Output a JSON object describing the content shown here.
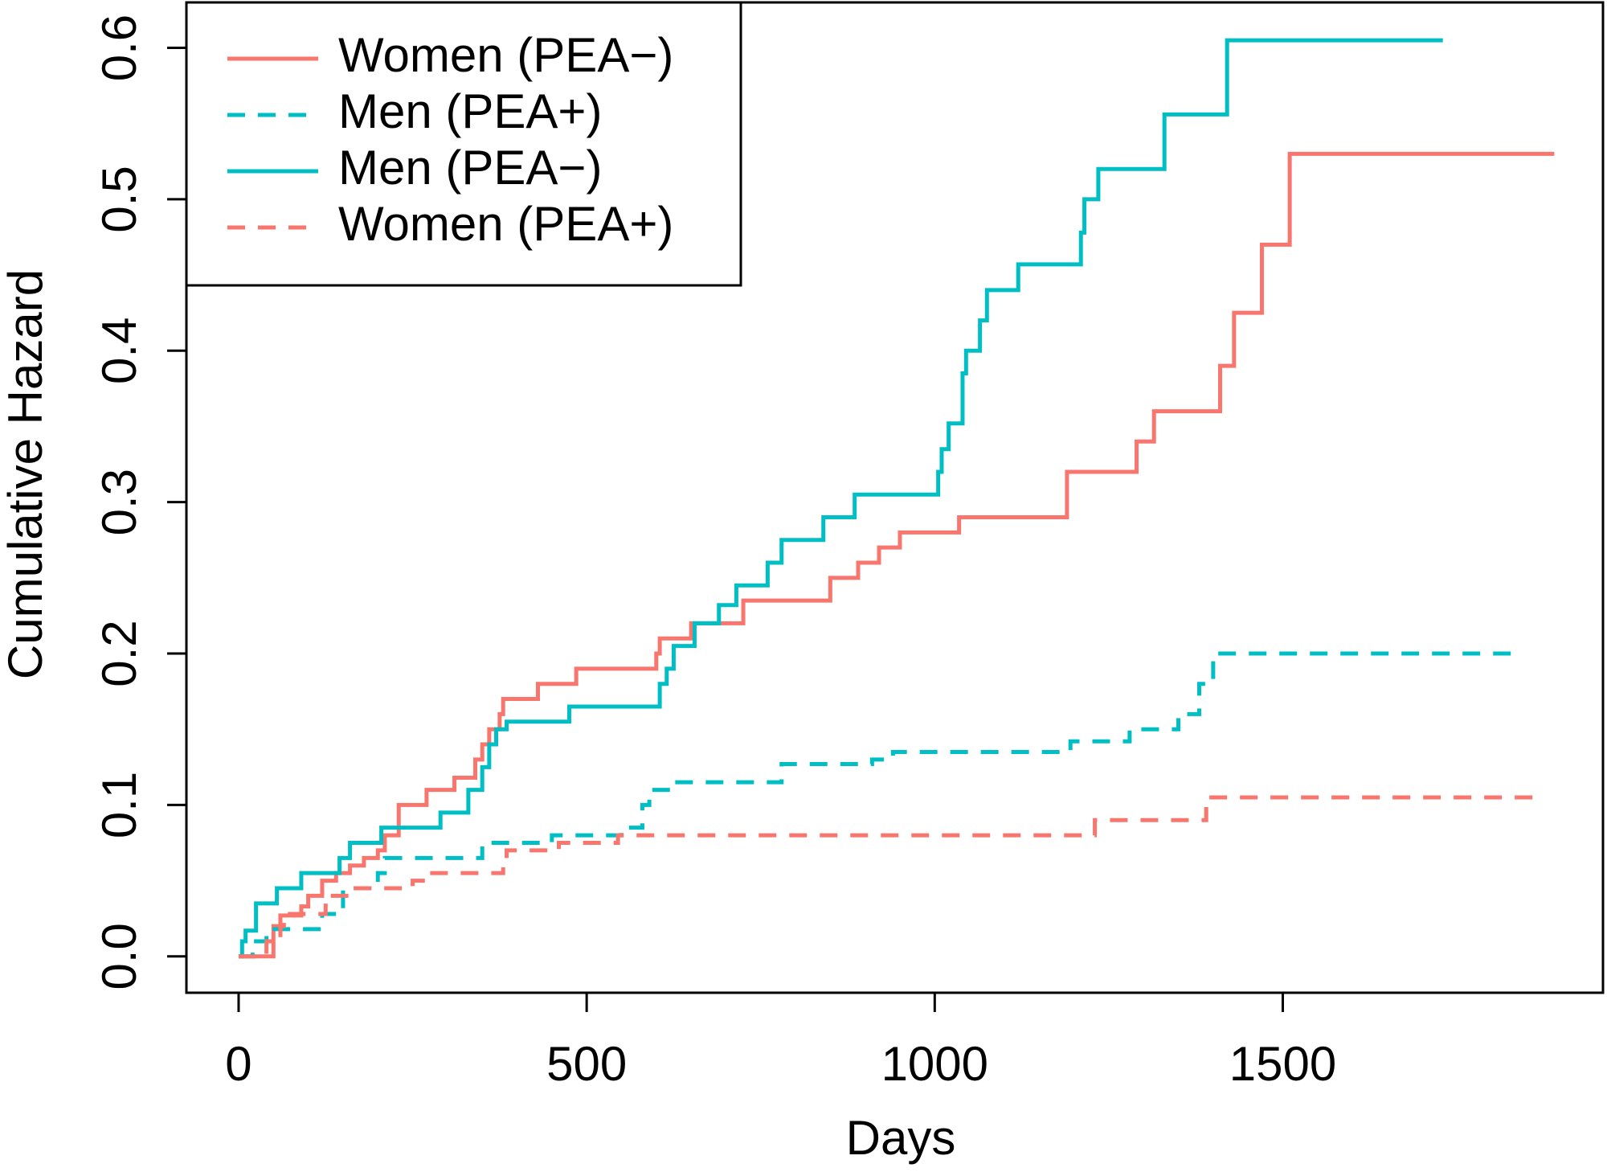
{
  "chart_data": {
    "type": "step",
    "xlabel": "Days",
    "ylabel": "Cumulative Hazard",
    "xlim": [
      -75,
      1960
    ],
    "ylim": [
      -0.024,
      0.63
    ],
    "xticks": [
      0,
      500,
      1000,
      1500
    ],
    "yticks": [
      {
        "value": 0,
        "label": "0.0"
      },
      0.1,
      0.2,
      0.3,
      0.4,
      0.5,
      0.6
    ],
    "legend": "top-left",
    "series": [
      {
        "name": "Women (PEA−)",
        "color": "#F8766D",
        "dash": false,
        "x": [
          0,
          50,
          60,
          90,
          100,
          120,
          140,
          160,
          180,
          200,
          210,
          230,
          270,
          310,
          340,
          350,
          360,
          375,
          380,
          430,
          485,
          600,
          605,
          650,
          725,
          850,
          890,
          920,
          950,
          1035,
          1190,
          1290,
          1315,
          1410,
          1430,
          1470,
          1510,
          1890
        ],
        "values": [
          0,
          0.02,
          0.027,
          0.033,
          0.04,
          0.05,
          0.055,
          0.06,
          0.065,
          0.07,
          0.08,
          0.1,
          0.11,
          0.118,
          0.13,
          0.14,
          0.15,
          0.16,
          0.17,
          0.18,
          0.19,
          0.2,
          0.21,
          0.22,
          0.235,
          0.25,
          0.26,
          0.27,
          0.28,
          0.29,
          0.32,
          0.34,
          0.36,
          0.39,
          0.425,
          0.47,
          0.53,
          0.53
        ]
      },
      {
        "name": "Men (PEA+)",
        "color": "#00BFC4",
        "dash": true,
        "x": [
          0,
          20,
          40,
          120,
          150,
          200,
          210,
          350,
          450,
          550,
          580,
          590,
          620,
          780,
          910,
          940,
          1195,
          1280,
          1350,
          1380,
          1400,
          1830
        ],
        "values": [
          0,
          0.01,
          0.018,
          0.028,
          0.045,
          0.055,
          0.065,
          0.075,
          0.08,
          0.085,
          0.1,
          0.11,
          0.115,
          0.127,
          0.13,
          0.135,
          0.142,
          0.15,
          0.16,
          0.18,
          0.2,
          0.2
        ]
      },
      {
        "name": "Men (PEA−)",
        "color": "#00BFC4",
        "dash": false,
        "x": [
          0,
          5,
          10,
          25,
          55,
          90,
          145,
          160,
          205,
          290,
          330,
          350,
          360,
          370,
          385,
          475,
          605,
          615,
          625,
          655,
          690,
          715,
          760,
          780,
          840,
          885,
          1005,
          1010,
          1020,
          1040,
          1045,
          1065,
          1075,
          1120,
          1210,
          1215,
          1235,
          1330,
          1420,
          1730
        ],
        "values": [
          0,
          0.01,
          0.017,
          0.035,
          0.045,
          0.055,
          0.065,
          0.075,
          0.085,
          0.095,
          0.11,
          0.125,
          0.14,
          0.15,
          0.155,
          0.165,
          0.18,
          0.19,
          0.205,
          0.22,
          0.232,
          0.245,
          0.26,
          0.275,
          0.29,
          0.305,
          0.32,
          0.335,
          0.352,
          0.385,
          0.4,
          0.42,
          0.44,
          0.457,
          0.478,
          0.5,
          0.52,
          0.556,
          0.605,
          0.605
        ]
      },
      {
        "name": "Women (PEA+)",
        "color": "#F8766D",
        "dash": true,
        "x": [
          0,
          40,
          60,
          65,
          125,
          160,
          250,
          270,
          380,
          385,
          460,
          545,
          1230,
          1390,
          1870
        ],
        "values": [
          0,
          0.01,
          0.02,
          0.028,
          0.04,
          0.045,
          0.05,
          0.055,
          0.06,
          0.07,
          0.075,
          0.08,
          0.09,
          0.105,
          0.105
        ]
      }
    ]
  }
}
